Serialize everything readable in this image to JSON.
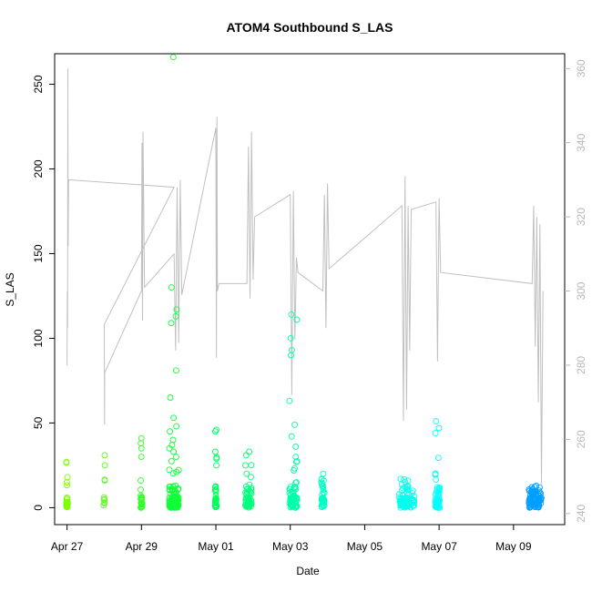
{
  "chart_data": {
    "type": "scatter",
    "title": "ATOM4 Southbound S_LAS",
    "xlabel": "Date",
    "ylabel": "S_LAS",
    "xlim": [
      "2026-04-26T16:00",
      "2026-05-10T09:00"
    ],
    "ylim": [
      -10,
      268
    ],
    "y2lim": [
      237,
      364
    ],
    "x_ticks": [
      "Apr 27",
      "Apr 29",
      "May 01",
      "May 03",
      "May 05",
      "May 07",
      "May 09"
    ],
    "x_tick_dates": [
      "2026-04-27",
      "2026-04-29",
      "2026-05-01",
      "2026-05-03",
      "2026-05-05",
      "2026-05-07",
      "2026-05-09"
    ],
    "y_ticks": [
      0,
      50,
      100,
      150,
      200,
      250
    ],
    "y2_ticks": [
      240,
      260,
      280,
      300,
      320,
      340,
      360
    ],
    "colors": {
      "line": "#c0c0c0",
      "axis": "#000000",
      "axis2": "#b8b8b8"
    },
    "point_color_scale": [
      "#80ff00",
      "#00ff40",
      "#00ffc0",
      "#00ffff",
      "#0080ff"
    ],
    "series": [
      {
        "type": "points",
        "note_clusters": true,
        "clusters": [
          {
            "t": "2026-04-27T00:00",
            "spread_h": 0.5,
            "n": 22,
            "max": 27,
            "high": [
              27,
              18,
              15
            ]
          },
          {
            "t": "2026-04-28T00:00",
            "spread_h": 0.4,
            "n": 10,
            "max": 31,
            "high": [
              31,
              25,
              16
            ]
          },
          {
            "t": "2026-04-29T00:00",
            "spread_h": 0.5,
            "n": 30,
            "max": 41,
            "high": [
              41,
              38,
              35,
              30,
              16
            ]
          },
          {
            "t": "2026-04-29T21:00",
            "spread_h": 3.0,
            "n": 130,
            "max": 266,
            "high": [
              266,
              130,
              117,
              113,
              109,
              81,
              65,
              53,
              48,
              45,
              40,
              37,
              35,
              33,
              30
            ]
          },
          {
            "t": "2026-05-01T00:00",
            "spread_h": 0.5,
            "n": 40,
            "max": 46,
            "high": [
              46,
              45,
              33,
              29,
              25
            ]
          },
          {
            "t": "2026-05-01T21:00",
            "spread_h": 2.0,
            "n": 55,
            "max": 33,
            "high": [
              33,
              31,
              25,
              20
            ]
          },
          {
            "t": "2026-05-03T02:00",
            "spread_h": 2.5,
            "n": 70,
            "max": 114,
            "high": [
              114,
              111,
              100,
              93,
              90,
              63,
              49,
              42,
              36,
              30,
              22
            ]
          },
          {
            "t": "2026-05-03T21:00",
            "spread_h": 1.0,
            "n": 45,
            "max": 20,
            "high": [
              20,
              17,
              14
            ]
          },
          {
            "t": "2026-05-06T03:00",
            "spread_h": 5.0,
            "n": 80,
            "max": 17,
            "high": [
              17,
              12,
              10
            ]
          },
          {
            "t": "2026-05-06T23:00",
            "spread_h": 1.5,
            "n": 50,
            "max": 51,
            "high": [
              51,
              47,
              44,
              12,
              10
            ]
          },
          {
            "t": "2026-05-09T14:00",
            "spread_h": 4.0,
            "n": 90,
            "max": 9,
            "high": [
              9,
              8
            ]
          }
        ]
      },
      {
        "type": "line",
        "axis": "right",
        "points": [
          [
            "2026-04-27T00:00",
            280
          ],
          [
            "2026-04-27T00:10",
            300
          ],
          [
            "2026-04-27T00:20",
            290
          ],
          [
            "2026-04-27T00:30",
            360
          ],
          [
            "2026-04-27T00:40",
            312
          ],
          [
            "2026-04-27T01:00",
            330
          ],
          [
            "2026-04-29T21:00",
            328
          ],
          [
            "2026-04-28T00:00",
            291
          ],
          [
            "2026-04-28T00:10",
            264
          ],
          [
            "2026-04-28T00:20",
            278
          ],
          [
            "2026-04-29T00:00",
            300
          ],
          [
            "2026-04-29T00:20",
            340
          ],
          [
            "2026-04-29T00:40",
            292
          ],
          [
            "2026-04-29T01:00",
            343
          ],
          [
            "2026-04-29T02:00",
            301
          ],
          [
            "2026-04-29T21:00",
            310
          ],
          [
            "2026-04-29T22:00",
            284
          ],
          [
            "2026-04-29T23:00",
            328
          ],
          [
            "2026-04-30T00:00",
            286
          ],
          [
            "2026-04-30T01:00",
            330
          ],
          [
            "2026-04-30T02:00",
            299
          ],
          [
            "2026-05-01T00:00",
            344
          ],
          [
            "2026-05-01T00:20",
            282
          ],
          [
            "2026-05-01T00:40",
            347
          ],
          [
            "2026-05-01T01:00",
            300
          ],
          [
            "2026-05-01T02:00",
            302
          ],
          [
            "2026-05-01T20:00",
            302
          ],
          [
            "2026-05-01T21:00",
            339
          ],
          [
            "2026-05-01T22:00",
            298
          ],
          [
            "2026-05-01T23:00",
            343
          ],
          [
            "2026-05-02T00:00",
            303
          ],
          [
            "2026-05-02T01:00",
            320
          ],
          [
            "2026-05-03T00:00",
            326
          ],
          [
            "2026-05-03T01:00",
            272
          ],
          [
            "2026-05-03T02:00",
            327
          ],
          [
            "2026-05-03T03:00",
            287
          ],
          [
            "2026-05-03T04:00",
            309
          ],
          [
            "2026-05-03T05:00",
            305
          ],
          [
            "2026-05-03T21:00",
            300
          ],
          [
            "2026-05-03T22:00",
            326
          ],
          [
            "2026-05-03T23:00",
            290
          ],
          [
            "2026-05-04T00:00",
            329
          ],
          [
            "2026-05-04T01:00",
            306
          ],
          [
            "2026-05-06T00:00",
            323
          ],
          [
            "2026-05-06T01:00",
            265
          ],
          [
            "2026-05-06T02:00",
            331
          ],
          [
            "2026-05-06T03:00",
            268
          ],
          [
            "2026-05-06T04:00",
            323
          ],
          [
            "2026-05-06T05:00",
            284
          ],
          [
            "2026-05-06T06:00",
            322
          ],
          [
            "2026-05-06T22:00",
            324
          ],
          [
            "2026-05-06T23:00",
            281
          ],
          [
            "2026-05-07T00:00",
            325
          ],
          [
            "2026-05-07T01:00",
            305
          ],
          [
            "2026-05-09T12:00",
            302
          ],
          [
            "2026-05-09T13:00",
            323
          ],
          [
            "2026-05-09T14:00",
            285
          ],
          [
            "2026-05-09T15:00",
            320
          ],
          [
            "2026-05-09T16:00",
            270
          ],
          [
            "2026-05-09T17:00",
            318
          ],
          [
            "2026-05-09T18:00",
            248
          ],
          [
            "2026-05-09T19:00",
            300
          ]
        ]
      }
    ]
  }
}
